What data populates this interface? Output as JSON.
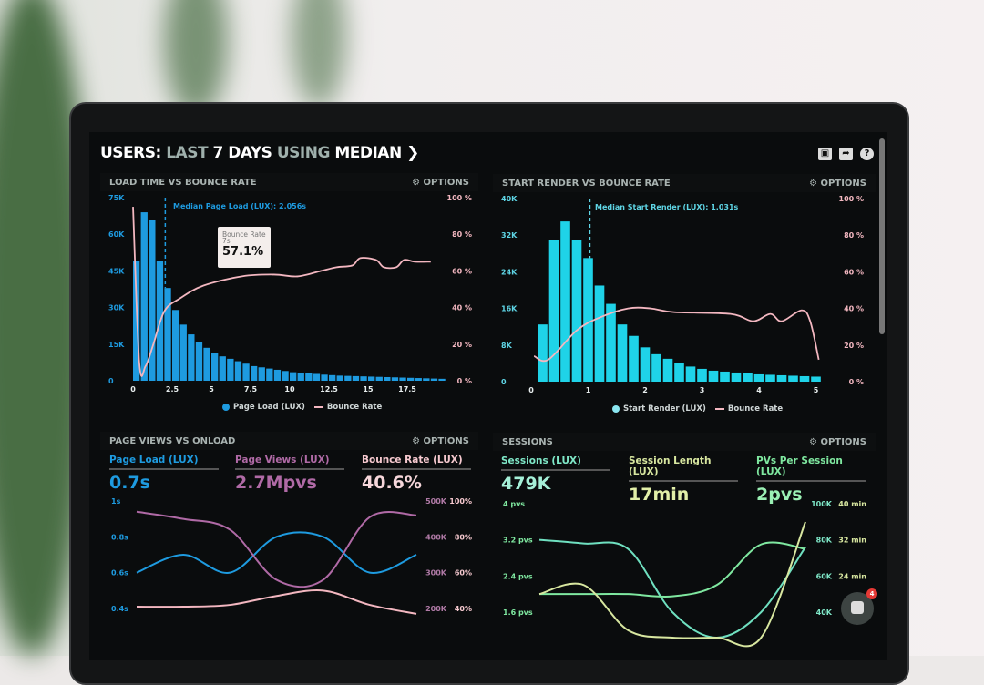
{
  "header": {
    "title_parts": [
      "USERS:",
      "LAST",
      "7 DAYS",
      "USING",
      "MEDIAN"
    ],
    "icons": [
      "monitor-icon",
      "share-icon",
      "help-icon"
    ]
  },
  "colors": {
    "load_blue": "#1e9be0",
    "render_cyan": "#1fd3e8",
    "bounce_pink": "#f3b7c0",
    "pageviews_purple": "#b06aa6",
    "sessions_teal": "#6fe0c0",
    "length_yellow": "#d8e7a0",
    "pvs_green": "#7fe8a0"
  },
  "options_label": "OPTIONS",
  "panels": {
    "load": {
      "title": "LOAD TIME VS BOUNCE RATE",
      "median": "Median Page Load (LUX): 2.056s",
      "legend": [
        "Page Load (LUX)",
        "Bounce Rate"
      ],
      "tooltip": {
        "title": "Bounce Rate",
        "x": "7s",
        "value": "57.1%"
      }
    },
    "render": {
      "title": "START RENDER VS BOUNCE RATE",
      "median": "Median Start Render (LUX): 1.031s",
      "legend": [
        "Start Render (LUX)",
        "Bounce Rate"
      ]
    },
    "pageviews": {
      "title": "PAGE VIEWS VS ONLOAD",
      "metrics": [
        {
          "label": "Page Load (LUX)",
          "value": "0.7s"
        },
        {
          "label": "Page Views (LUX)",
          "value": "2.7Mpvs"
        },
        {
          "label": "Bounce Rate (LUX)",
          "value": "40.6%"
        }
      ]
    },
    "sessions": {
      "title": "SESSIONS",
      "metrics": [
        {
          "label": "Sessions (LUX)",
          "value": "479K"
        },
        {
          "label": "Session Length (LUX)",
          "value": "17min"
        },
        {
          "label": "PVs Per Session (LUX)",
          "value": "2pvs"
        }
      ]
    }
  },
  "chat": {
    "badge": "4"
  },
  "chart_data": [
    {
      "type": "bar",
      "name": "load",
      "xlim": [
        0,
        20
      ],
      "ylim": [
        0,
        75000
      ],
      "y2lim": [
        0,
        100
      ],
      "xticks": [
        "0",
        "2.5",
        "5",
        "7.5",
        "10",
        "12.5",
        "15",
        "17.5"
      ],
      "yticks": [
        "0",
        "15K",
        "30K",
        "45K",
        "60K",
        "75K"
      ],
      "y2ticks": [
        "0 %",
        "20 %",
        "40 %",
        "60 %",
        "80 %",
        "100 %"
      ],
      "median": 2.056,
      "series": [
        {
          "name": "Page Load (LUX)",
          "kind": "bar",
          "x_start": 0,
          "x_step": 0.5,
          "values": [
            49000,
            69000,
            66000,
            49000,
            38000,
            29000,
            23000,
            19000,
            16000,
            13500,
            11500,
            10000,
            9000,
            8000,
            7000,
            6000,
            5500,
            5000,
            4500,
            4000,
            3500,
            3200,
            3000,
            2800,
            2500,
            2300,
            2100,
            2000,
            1900,
            1800,
            1700,
            1600,
            1500,
            1400,
            1300,
            1200,
            1100,
            1000,
            900,
            800
          ]
        },
        {
          "name": "Bounce Rate",
          "kind": "line",
          "points": [
            [
              0,
              95
            ],
            [
              0.4,
              10
            ],
            [
              0.8,
              8
            ],
            [
              1.3,
              20
            ],
            [
              2,
              38
            ],
            [
              3,
              45
            ],
            [
              4.5,
              52
            ],
            [
              7,
              57.1
            ],
            [
              9,
              58
            ],
            [
              10.5,
              57
            ],
            [
              12,
              60
            ],
            [
              13,
              62
            ],
            [
              14,
              63
            ],
            [
              14.5,
              67
            ],
            [
              15.5,
              66
            ],
            [
              16,
              62
            ],
            [
              16.8,
              62
            ],
            [
              17.3,
              66
            ],
            [
              18,
              65
            ],
            [
              19,
              65
            ]
          ]
        }
      ]
    },
    {
      "type": "bar",
      "name": "render",
      "xlim": [
        0,
        5.2
      ],
      "ylim": [
        0,
        40000
      ],
      "y2lim": [
        0,
        100
      ],
      "xticks": [
        "0",
        "1",
        "2",
        "3",
        "4",
        "5"
      ],
      "yticks": [
        "0",
        "8K",
        "16K",
        "24K",
        "32K",
        "40K"
      ],
      "y2ticks": [
        "0 %",
        "20 %",
        "40 %",
        "60 %",
        "80 %",
        "100 %"
      ],
      "median": 1.031,
      "series": [
        {
          "name": "Start Render (LUX)",
          "kind": "bar",
          "x_start": 0.2,
          "x_step": 0.2,
          "values": [
            12500,
            31000,
            35000,
            31000,
            27000,
            21000,
            17000,
            12500,
            10000,
            7500,
            6000,
            5000,
            4000,
            3300,
            2800,
            2400,
            2200,
            2000,
            1800,
            1600,
            1500,
            1400,
            1300,
            1200,
            1100
          ]
        },
        {
          "name": "Bounce Rate",
          "kind": "line",
          "points": [
            [
              0.05,
              14
            ],
            [
              0.3,
              12
            ],
            [
              0.8,
              28
            ],
            [
              1.2,
              35
            ],
            [
              1.7,
              40
            ],
            [
              2.1,
              40
            ],
            [
              2.5,
              38
            ],
            [
              3.5,
              37
            ],
            [
              3.9,
              33
            ],
            [
              4.2,
              37
            ],
            [
              4.4,
              33
            ],
            [
              4.75,
              39
            ],
            [
              4.9,
              33
            ],
            [
              5.05,
              12
            ]
          ]
        }
      ]
    },
    {
      "type": "line",
      "name": "pageviews",
      "x": [
        0,
        1,
        2,
        3,
        4,
        5,
        6
      ],
      "yticks": [
        "0.4s",
        "0.6s",
        "0.8s",
        "1s"
      ],
      "ylim": [
        0.4,
        1.0
      ],
      "y2ticks": [
        "200K",
        "300K",
        "400K",
        "500K"
      ],
      "y3ticks": [
        "40%",
        "60%",
        "80%",
        "100%"
      ],
      "series": [
        {
          "name": "Page Load (LUX)",
          "axis": "s",
          "values": [
            0.6,
            0.7,
            0.6,
            0.8,
            0.8,
            0.6,
            0.7
          ]
        },
        {
          "name": "Page Views (LUX)",
          "axis": "K",
          "ylim": [
            200000,
            500000
          ],
          "values": [
            470000,
            450000,
            420000,
            280000,
            280000,
            455000,
            460000
          ]
        },
        {
          "name": "Bounce Rate (LUX)",
          "axis": "%",
          "ylim": [
            40,
            100
          ],
          "values": [
            41,
            41,
            42,
            47,
            50,
            42,
            37
          ]
        }
      ]
    },
    {
      "type": "line",
      "name": "sessions",
      "x": [
        0,
        1,
        2,
        3,
        4,
        5,
        6
      ],
      "yticks": [
        "1.6 pvs",
        "2.4 pvs",
        "3.2 pvs",
        "4 pvs"
      ],
      "ylim": [
        1.6,
        4.0
      ],
      "y2ticks": [
        "40K",
        "60K",
        "80K",
        "100K"
      ],
      "y3ticks": [
        "24 min",
        "32 min",
        "40 min"
      ],
      "series": [
        {
          "name": "Sessions (LUX)",
          "axis": "K",
          "ylim": [
            40000,
            100000
          ],
          "values": [
            80000,
            78000,
            75000,
            40000,
            20000,
            40000,
            76000
          ]
        },
        {
          "name": "PVs Per Session (LUX)",
          "axis": "pvs",
          "values": [
            2.0,
            2.0,
            2.0,
            1.95,
            2.2,
            3.1,
            3.0
          ]
        },
        {
          "name": "Session Length (LUX)",
          "axis": "min",
          "ylim": [
            16,
            40
          ],
          "values": [
            20,
            22,
            12,
            5,
            2,
            10,
            36
          ]
        }
      ]
    }
  ]
}
